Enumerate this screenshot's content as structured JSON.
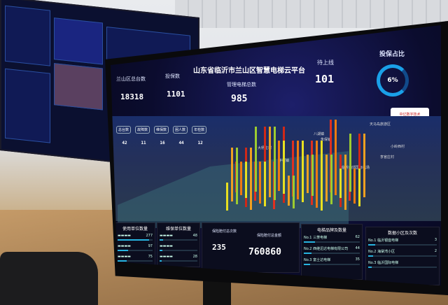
{
  "dashboard": {
    "title": "山东省临沂市兰山区智慧电梯云平台",
    "stats": {
      "total_label": "兰山区总台数",
      "total_value": "18318",
      "insured_label": "投保数",
      "insured_value": "1101",
      "managed_label": "管理电梯总数",
      "managed_value": "985",
      "pending_label": "待上线",
      "pending_value": "101",
      "ratio_label": "投保占比",
      "ratio_value": "6%"
    },
    "logo_text": "中亿数字技术",
    "filters": [
      {
        "label": "总台数",
        "value": "42"
      },
      {
        "label": "故障数",
        "value": "11"
      },
      {
        "label": "维保数",
        "value": "16"
      },
      {
        "label": "困人数",
        "value": "44"
      },
      {
        "label": "年检数",
        "value": "12"
      }
    ],
    "map_labels": [
      "天马岛旅游区",
      "八湖镇",
      "大杨庄村",
      "小岭西村",
      "临沂西郊国际机场",
      "半程镇",
      "朱保镇",
      "李官庄村"
    ],
    "panels": {
      "left1": {
        "title": "使用单位数量",
        "rows": [
          {
            "value": "277",
            "fill": 0.9
          },
          {
            "value": "97",
            "fill": 0.3
          },
          {
            "value": "75",
            "fill": 0.25
          }
        ]
      },
      "left2": {
        "title": "维保单位数量",
        "rows": [
          {
            "value": "48",
            "fill": 0.1
          },
          {
            "value": "",
            "fill": 0.08
          },
          {
            "value": "28",
            "fill": 0.06
          }
        ]
      },
      "claims_count_label": "保险赔付总次数",
      "claims_count_value": "235",
      "claims_amount_label": "保险赔付总金额",
      "claims_amount_value": "760860",
      "brands": {
        "title": "电梯品牌及数量",
        "rows": [
          {
            "rank": "No.1",
            "name": "三菱电梯",
            "value": "62",
            "fill": 0.2
          },
          {
            "rank": "No.2",
            "name": "西继迅达电梯有限公司",
            "value": "44",
            "fill": 0.14
          },
          {
            "rank": "No.3",
            "name": "富士达电梯",
            "value": "35",
            "fill": 0.11
          }
        ]
      },
      "areas": {
        "title": "数据小区及次数",
        "rows": [
          {
            "rank": "No.1",
            "name": "临沂银座电梯",
            "value": "3",
            "fill": 0.1
          },
          {
            "rank": "No.2",
            "name": "海棠湾小区",
            "value": "2",
            "fill": 0.07
          },
          {
            "rank": "No.3",
            "name": "临沂国际电梯",
            "value": "",
            "fill": 0.05
          }
        ]
      }
    }
  }
}
